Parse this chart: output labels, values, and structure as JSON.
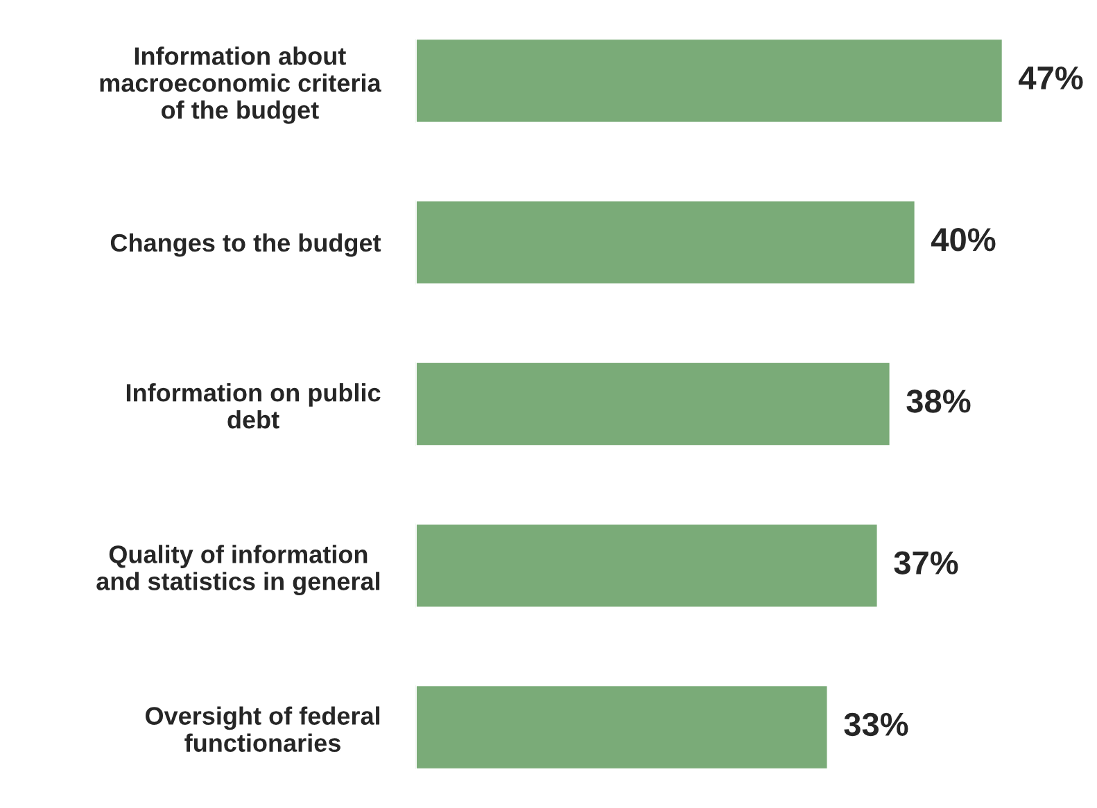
{
  "chart_data": {
    "type": "bar",
    "orientation": "horizontal",
    "categories": [
      "Information about\nmacroeconomic criteria\nof the budget",
      "Changes to the budget",
      "Information on public\ndebt",
      "Quality of information\nand statistics in general",
      "Oversight of federal\nfunctionaries"
    ],
    "values": [
      47,
      40,
      38,
      37,
      33
    ],
    "value_labels": [
      "47%",
      "40%",
      "38%",
      "37%",
      "33%"
    ],
    "color": "#7aab78"
  }
}
